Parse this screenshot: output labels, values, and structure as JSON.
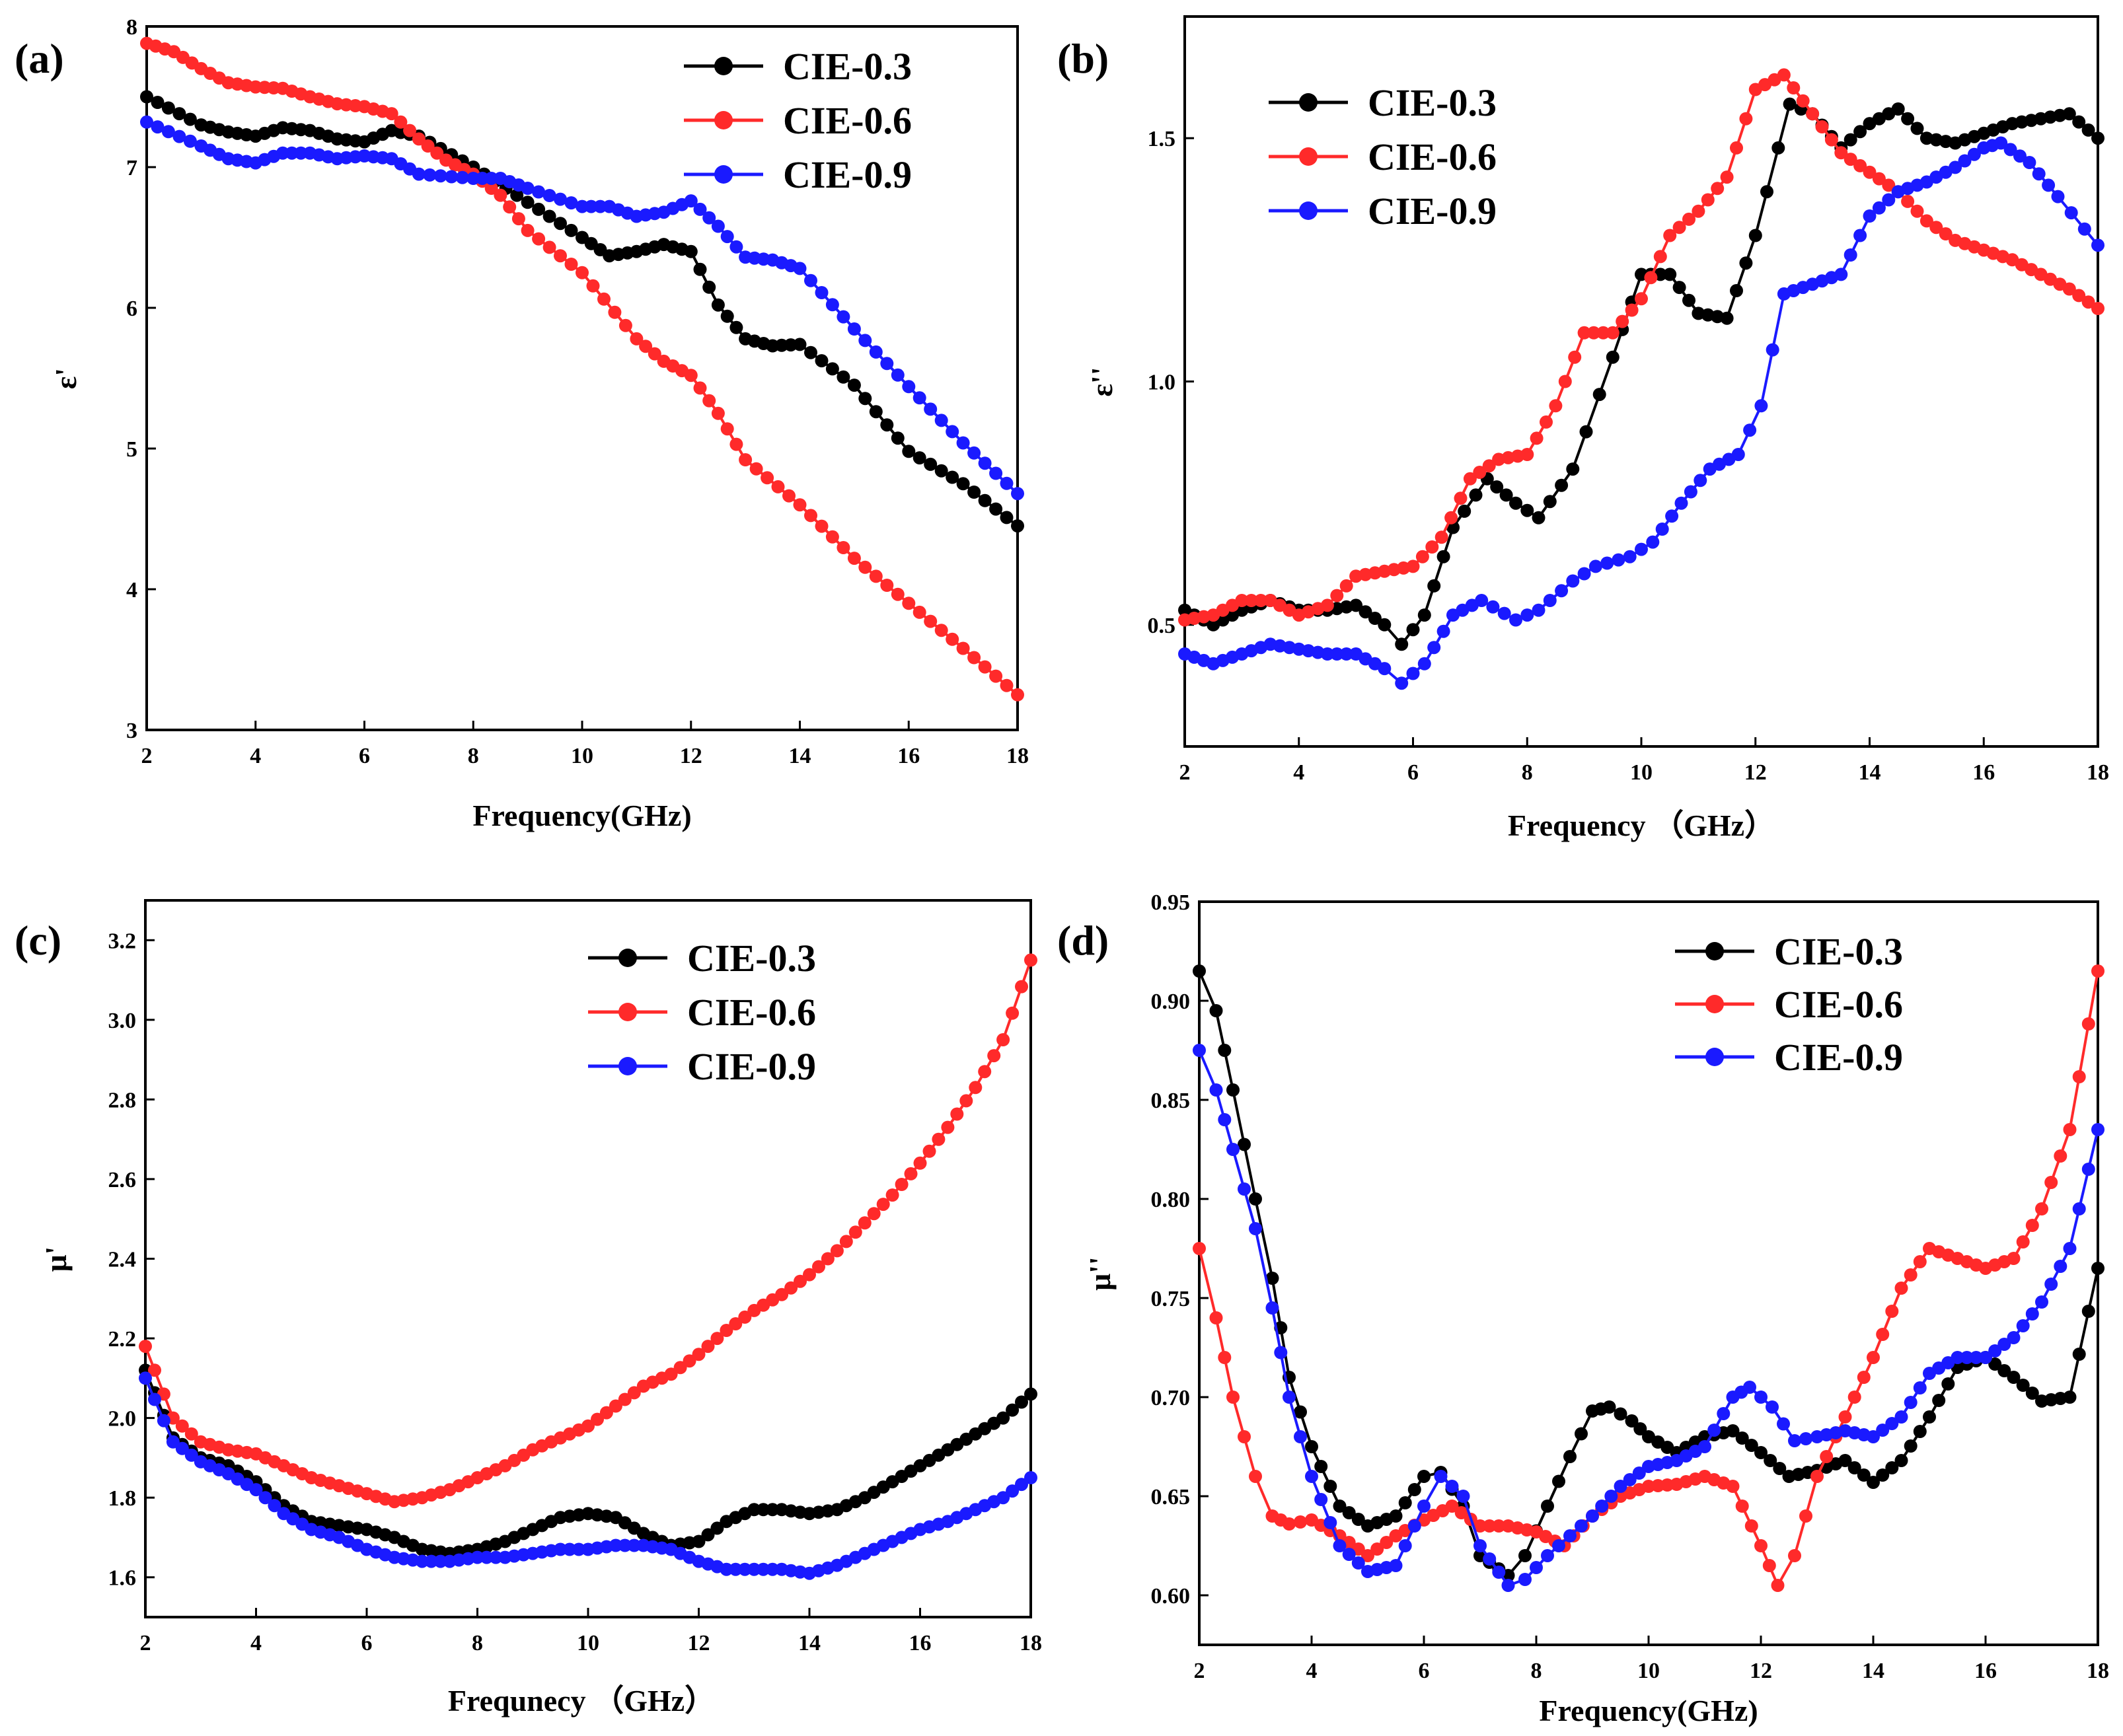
{
  "figure": {
    "panels": [
      "(a)",
      "(b)",
      "(c)",
      "(d)"
    ]
  },
  "chart_data": [
    {
      "panel": "(a)",
      "type": "line",
      "title": "",
      "xlabel": "Frequency(GHz)",
      "ylabel": "ε'",
      "xlim": [
        2,
        18
      ],
      "ylim": [
        3,
        8
      ],
      "xticks": [
        2,
        4,
        6,
        8,
        10,
        12,
        14,
        16,
        18
      ],
      "yticks": [
        3,
        4,
        5,
        6,
        7,
        8
      ],
      "ytick_labels": [
        "3",
        "4",
        "5",
        "6",
        "7",
        "8"
      ],
      "legend_position": "top-right",
      "series": [
        {
          "name": "CIE-0.3",
          "color": "#000000",
          "x": [
            2,
            3,
            3.5,
            4,
            4.5,
            5,
            5.5,
            6,
            6.5,
            7,
            8,
            9,
            10,
            10.5,
            11,
            11.5,
            12,
            12.5,
            13,
            13.5,
            14,
            15,
            16,
            17,
            18
          ],
          "y": [
            7.5,
            7.3,
            7.25,
            7.22,
            7.28,
            7.26,
            7.2,
            7.18,
            7.26,
            7.22,
            7.0,
            6.75,
            6.5,
            6.37,
            6.4,
            6.45,
            6.4,
            6.02,
            5.78,
            5.73,
            5.74,
            5.45,
            4.98,
            4.75,
            4.45
          ]
        },
        {
          "name": "CIE-0.6",
          "color": "#ff2a2a",
          "x": [
            2,
            2.5,
            3,
            3.5,
            4,
            4.5,
            5,
            5.5,
            6,
            6.5,
            7,
            7.5,
            8,
            8.5,
            9,
            10,
            11,
            11.5,
            12,
            12.5,
            13,
            14,
            15,
            16,
            17,
            18
          ],
          "y": [
            7.88,
            7.82,
            7.7,
            7.6,
            7.57,
            7.56,
            7.5,
            7.45,
            7.43,
            7.38,
            7.2,
            7.05,
            6.95,
            6.8,
            6.55,
            6.25,
            5.78,
            5.62,
            5.52,
            5.25,
            4.92,
            4.6,
            4.22,
            3.9,
            3.58,
            3.25
          ]
        },
        {
          "name": "CIE-0.9",
          "color": "#1a1aff",
          "x": [
            2,
            3,
            3.5,
            4,
            4.5,
            5,
            5.5,
            6,
            6.5,
            7,
            8,
            8.5,
            9,
            10,
            10.5,
            11,
            11.5,
            12,
            12.5,
            13,
            13.5,
            14,
            15,
            16,
            17,
            18
          ],
          "y": [
            7.32,
            7.15,
            7.06,
            7.03,
            7.1,
            7.1,
            7.06,
            7.08,
            7.06,
            6.95,
            6.92,
            6.92,
            6.85,
            6.72,
            6.72,
            6.65,
            6.68,
            6.76,
            6.58,
            6.36,
            6.34,
            6.28,
            5.85,
            5.44,
            5.04,
            4.68
          ]
        }
      ]
    },
    {
      "panel": "(b)",
      "type": "line",
      "title": "",
      "xlabel": "Frequency （GHz）",
      "ylabel": "ε''",
      "xlim": [
        2,
        18
      ],
      "ylim": [
        0.25,
        1.75
      ],
      "xticks": [
        2,
        4,
        6,
        8,
        10,
        12,
        14,
        16,
        18
      ],
      "yticks": [
        0.5,
        1.0,
        1.5
      ],
      "ytick_labels": [
        "0.5",
        "1.0",
        "1.5"
      ],
      "legend_position": "top-left",
      "series": [
        {
          "name": "CIE-0.3",
          "color": "#000000",
          "x": [
            2,
            2.5,
            3,
            3.5,
            4,
            4.5,
            5,
            5.5,
            5.8,
            6.2,
            6.7,
            7.3,
            7.8,
            8.2,
            8.8,
            9.5,
            10,
            10.5,
            11,
            11.5,
            12,
            12.6,
            13,
            13.5,
            14,
            14.5,
            15,
            15.5,
            16,
            16.5,
            17,
            17.5,
            18
          ],
          "y": [
            0.53,
            0.5,
            0.53,
            0.55,
            0.53,
            0.53,
            0.54,
            0.5,
            0.46,
            0.52,
            0.7,
            0.8,
            0.75,
            0.72,
            0.82,
            1.05,
            1.22,
            1.22,
            1.14,
            1.13,
            1.3,
            1.57,
            1.55,
            1.48,
            1.53,
            1.56,
            1.5,
            1.49,
            1.51,
            1.53,
            1.54,
            1.55,
            1.5
          ]
        },
        {
          "name": "CIE-0.6",
          "color": "#ff2a2a",
          "x": [
            2,
            2.5,
            3,
            3.5,
            4,
            4.5,
            5,
            5.5,
            6,
            6.5,
            7,
            7.5,
            8,
            8.5,
            9,
            9.5,
            10,
            10.5,
            11,
            11.5,
            12,
            12.5,
            13,
            13.5,
            14,
            14.5,
            15,
            15.5,
            16,
            16.5,
            17,
            17.5,
            18
          ],
          "y": [
            0.51,
            0.52,
            0.55,
            0.55,
            0.52,
            0.54,
            0.6,
            0.61,
            0.62,
            0.68,
            0.8,
            0.84,
            0.85,
            0.95,
            1.1,
            1.1,
            1.17,
            1.3,
            1.35,
            1.42,
            1.6,
            1.63,
            1.55,
            1.47,
            1.43,
            1.39,
            1.33,
            1.29,
            1.27,
            1.25,
            1.22,
            1.19,
            1.15
          ]
        },
        {
          "name": "CIE-0.9",
          "color": "#1a1aff",
          "x": [
            2,
            2.5,
            3,
            3.5,
            4,
            4.5,
            5,
            5.5,
            5.8,
            6.2,
            6.7,
            7.2,
            7.8,
            8.2,
            8.8,
            9.2,
            9.8,
            10.2,
            10.7,
            11.2,
            11.7,
            12.1,
            12.5,
            13,
            13.5,
            14,
            14.5,
            15,
            15.5,
            16,
            16.3,
            16.8,
            17.3,
            18
          ],
          "y": [
            0.44,
            0.42,
            0.44,
            0.46,
            0.45,
            0.44,
            0.44,
            0.41,
            0.38,
            0.42,
            0.52,
            0.55,
            0.51,
            0.53,
            0.59,
            0.62,
            0.64,
            0.67,
            0.75,
            0.82,
            0.85,
            0.95,
            1.18,
            1.2,
            1.22,
            1.34,
            1.39,
            1.41,
            1.44,
            1.48,
            1.49,
            1.45,
            1.38,
            1.28
          ]
        }
      ]
    },
    {
      "panel": "(c)",
      "type": "line",
      "title": "",
      "xlabel": "Frequnecy （GHz）",
      "ylabel": "μ'",
      "xlim": [
        2,
        18
      ],
      "ylim": [
        1.5,
        3.3
      ],
      "xticks": [
        2,
        4,
        6,
        8,
        10,
        12,
        14,
        16,
        18
      ],
      "yticks": [
        1.6,
        1.8,
        2.0,
        2.2,
        2.4,
        2.6,
        2.8,
        3.0,
        3.2
      ],
      "ytick_labels": [
        "1.6",
        "1.8",
        "2.0",
        "2.2",
        "2.4",
        "2.6",
        "2.8",
        "3.0",
        "3.2"
      ],
      "legend_position": "top-right",
      "series": [
        {
          "name": "CIE-0.3",
          "color": "#000000",
          "x": [
            2,
            2.5,
            3,
            3.5,
            4,
            4.5,
            5,
            5.5,
            6,
            6.5,
            7,
            7.5,
            8,
            8.5,
            9,
            9.5,
            10,
            10.5,
            11,
            11.5,
            12,
            12.5,
            13,
            13.5,
            14,
            14.5,
            15,
            15.5,
            16,
            16.5,
            17,
            17.5,
            18
          ],
          "y": [
            2.12,
            1.95,
            1.9,
            1.88,
            1.84,
            1.78,
            1.74,
            1.73,
            1.72,
            1.7,
            1.67,
            1.66,
            1.67,
            1.69,
            1.72,
            1.75,
            1.76,
            1.75,
            1.71,
            1.68,
            1.69,
            1.74,
            1.77,
            1.77,
            1.76,
            1.77,
            1.8,
            1.84,
            1.88,
            1.92,
            1.96,
            2.0,
            2.06
          ]
        },
        {
          "name": "CIE-0.6",
          "color": "#ff2a2a",
          "x": [
            2,
            2.5,
            3,
            3.5,
            4,
            4.5,
            5,
            5.5,
            6,
            6.5,
            7,
            7.5,
            8,
            8.5,
            9,
            9.5,
            10,
            10.5,
            11,
            11.5,
            12,
            12.5,
            13,
            13.5,
            14,
            14.5,
            15,
            15.5,
            16,
            16.5,
            17,
            17.5,
            18
          ],
          "y": [
            2.18,
            2.0,
            1.94,
            1.92,
            1.91,
            1.88,
            1.85,
            1.83,
            1.81,
            1.79,
            1.8,
            1.82,
            1.85,
            1.88,
            1.92,
            1.95,
            1.98,
            2.03,
            2.08,
            2.11,
            2.16,
            2.22,
            2.27,
            2.31,
            2.36,
            2.42,
            2.49,
            2.56,
            2.64,
            2.73,
            2.83,
            2.95,
            3.15
          ]
        },
        {
          "name": "CIE-0.9",
          "color": "#1a1aff",
          "x": [
            2,
            2.5,
            3,
            3.5,
            4,
            4.5,
            5,
            5.5,
            6,
            6.5,
            7,
            7.5,
            8,
            8.5,
            9,
            9.5,
            10,
            10.5,
            11,
            11.5,
            12,
            12.5,
            13,
            13.5,
            14,
            14.5,
            15,
            15.5,
            16,
            16.5,
            17,
            17.5,
            18
          ],
          "y": [
            2.1,
            1.94,
            1.89,
            1.86,
            1.82,
            1.76,
            1.72,
            1.7,
            1.67,
            1.65,
            1.64,
            1.64,
            1.65,
            1.65,
            1.66,
            1.67,
            1.67,
            1.68,
            1.68,
            1.67,
            1.64,
            1.62,
            1.62,
            1.62,
            1.61,
            1.63,
            1.66,
            1.69,
            1.72,
            1.74,
            1.77,
            1.8,
            1.85
          ]
        }
      ]
    },
    {
      "panel": "(d)",
      "type": "line",
      "title": "",
      "xlabel": "Frequency(GHz)",
      "ylabel": "μ''",
      "xlim": [
        2,
        18
      ],
      "ylim": [
        0.575,
        0.95
      ],
      "xticks": [
        2,
        4,
        6,
        8,
        10,
        12,
        14,
        16,
        18
      ],
      "yticks": [
        0.6,
        0.65,
        0.7,
        0.75,
        0.8,
        0.85,
        0.9,
        0.95
      ],
      "ytick_labels": [
        "0.60",
        "0.65",
        "0.70",
        "0.75",
        "0.80",
        "0.85",
        "0.90",
        "0.95"
      ],
      "legend_position": "top-right",
      "series": [
        {
          "name": "CIE-0.3",
          "color": "#000000",
          "x": [
            2,
            2.3,
            2.6,
            3,
            3.3,
            3.6,
            4,
            4.5,
            5,
            5.5,
            6,
            6.3,
            6.7,
            7,
            7.5,
            7.8,
            8.2,
            8.6,
            9,
            9.3,
            9.7,
            10,
            10.5,
            11,
            11.5,
            12,
            12.5,
            13,
            13.5,
            14,
            14.5,
            15,
            15.5,
            16,
            16.5,
            17,
            17.5,
            18
          ],
          "y": [
            0.915,
            0.895,
            0.855,
            0.8,
            0.76,
            0.71,
            0.675,
            0.645,
            0.635,
            0.64,
            0.66,
            0.662,
            0.645,
            0.62,
            0.61,
            0.62,
            0.645,
            0.67,
            0.693,
            0.695,
            0.688,
            0.68,
            0.672,
            0.68,
            0.683,
            0.672,
            0.66,
            0.663,
            0.668,
            0.657,
            0.668,
            0.69,
            0.715,
            0.72,
            0.71,
            0.698,
            0.7,
            0.765
          ]
        },
        {
          "name": "CIE-0.6",
          "color": "#ff2a2a",
          "x": [
            2,
            2.3,
            2.6,
            3,
            3.3,
            3.6,
            4,
            4.5,
            5,
            5.5,
            6,
            6.5,
            7,
            7.5,
            8,
            8.5,
            9,
            9.5,
            10,
            10.5,
            11,
            11.5,
            12,
            12.3,
            12.6,
            13,
            13.5,
            14,
            14.5,
            15,
            15.5,
            16,
            16.5,
            17,
            17.5,
            18
          ],
          "y": [
            0.775,
            0.74,
            0.7,
            0.66,
            0.64,
            0.636,
            0.638,
            0.63,
            0.62,
            0.63,
            0.638,
            0.645,
            0.635,
            0.635,
            0.632,
            0.625,
            0.64,
            0.65,
            0.655,
            0.656,
            0.66,
            0.655,
            0.625,
            0.605,
            0.62,
            0.66,
            0.69,
            0.72,
            0.755,
            0.775,
            0.77,
            0.765,
            0.77,
            0.795,
            0.835,
            0.915
          ]
        },
        {
          "name": "CIE-0.9",
          "color": "#1a1aff",
          "x": [
            2,
            2.3,
            2.6,
            3,
            3.3,
            3.6,
            4,
            4.5,
            5,
            5.5,
            6,
            6.3,
            6.7,
            7,
            7.5,
            7.8,
            8.2,
            8.6,
            9,
            9.5,
            10,
            10.5,
            11,
            11.5,
            11.8,
            12.2,
            12.6,
            13,
            13.5,
            14,
            14.5,
            15,
            15.5,
            16,
            16.5,
            17,
            17.5,
            18
          ],
          "y": [
            0.875,
            0.855,
            0.825,
            0.785,
            0.745,
            0.7,
            0.66,
            0.625,
            0.612,
            0.615,
            0.645,
            0.66,
            0.65,
            0.625,
            0.605,
            0.608,
            0.62,
            0.63,
            0.64,
            0.655,
            0.665,
            0.668,
            0.675,
            0.7,
            0.705,
            0.695,
            0.678,
            0.68,
            0.683,
            0.68,
            0.69,
            0.712,
            0.72,
            0.72,
            0.73,
            0.748,
            0.775,
            0.835
          ]
        }
      ]
    }
  ]
}
